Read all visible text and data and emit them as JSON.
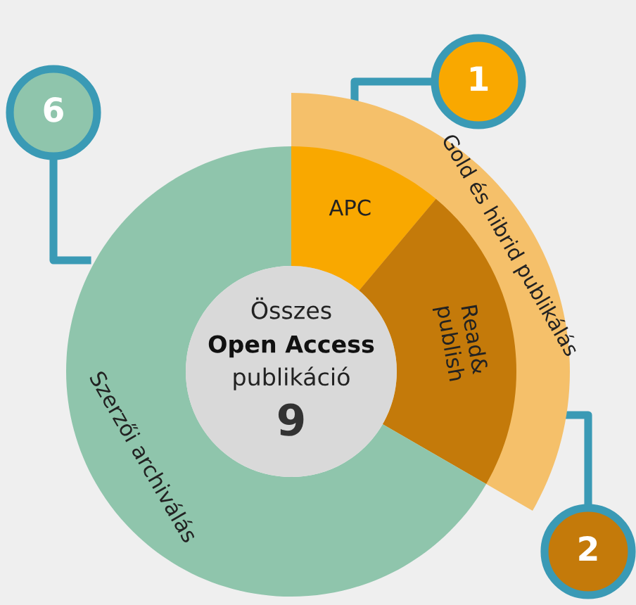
{
  "chart_data": {
    "type": "donut",
    "categories": [
      "APC",
      "Read&publish",
      "Szerzői archiválás"
    ],
    "values": [
      1,
      2,
      6
    ],
    "colors": [
      "#f9a800",
      "#c47a0a",
      "#8fc5ac"
    ],
    "data_labels": true,
    "annotations": [
      "Gold és hibrid publikálás",
      "Összes",
      "Open Access",
      "publikáció",
      "9"
    ]
  }
}
